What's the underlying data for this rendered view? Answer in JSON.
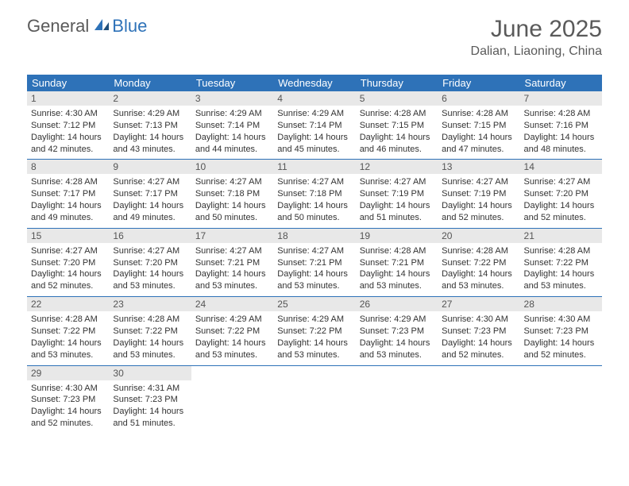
{
  "logo": {
    "part1": "General",
    "part2": "Blue"
  },
  "title": "June 2025",
  "location": "Dalian, Liaoning, China",
  "colors": {
    "header_bg": "#2e72b8",
    "header_text": "#ffffff",
    "daynum_bg": "#e8e8e8",
    "daynum_text": "#555555",
    "body_text": "#333333",
    "title_text": "#5a5a5a",
    "row_border": "#2e72b8"
  },
  "weekdays": [
    "Sunday",
    "Monday",
    "Tuesday",
    "Wednesday",
    "Thursday",
    "Friday",
    "Saturday"
  ],
  "days": [
    {
      "n": "1",
      "sr": "4:30 AM",
      "ss": "7:12 PM",
      "dl": "14 hours and 42 minutes."
    },
    {
      "n": "2",
      "sr": "4:29 AM",
      "ss": "7:13 PM",
      "dl": "14 hours and 43 minutes."
    },
    {
      "n": "3",
      "sr": "4:29 AM",
      "ss": "7:14 PM",
      "dl": "14 hours and 44 minutes."
    },
    {
      "n": "4",
      "sr": "4:29 AM",
      "ss": "7:14 PM",
      "dl": "14 hours and 45 minutes."
    },
    {
      "n": "5",
      "sr": "4:28 AM",
      "ss": "7:15 PM",
      "dl": "14 hours and 46 minutes."
    },
    {
      "n": "6",
      "sr": "4:28 AM",
      "ss": "7:15 PM",
      "dl": "14 hours and 47 minutes."
    },
    {
      "n": "7",
      "sr": "4:28 AM",
      "ss": "7:16 PM",
      "dl": "14 hours and 48 minutes."
    },
    {
      "n": "8",
      "sr": "4:28 AM",
      "ss": "7:17 PM",
      "dl": "14 hours and 49 minutes."
    },
    {
      "n": "9",
      "sr": "4:27 AM",
      "ss": "7:17 PM",
      "dl": "14 hours and 49 minutes."
    },
    {
      "n": "10",
      "sr": "4:27 AM",
      "ss": "7:18 PM",
      "dl": "14 hours and 50 minutes."
    },
    {
      "n": "11",
      "sr": "4:27 AM",
      "ss": "7:18 PM",
      "dl": "14 hours and 50 minutes."
    },
    {
      "n": "12",
      "sr": "4:27 AM",
      "ss": "7:19 PM",
      "dl": "14 hours and 51 minutes."
    },
    {
      "n": "13",
      "sr": "4:27 AM",
      "ss": "7:19 PM",
      "dl": "14 hours and 52 minutes."
    },
    {
      "n": "14",
      "sr": "4:27 AM",
      "ss": "7:20 PM",
      "dl": "14 hours and 52 minutes."
    },
    {
      "n": "15",
      "sr": "4:27 AM",
      "ss": "7:20 PM",
      "dl": "14 hours and 52 minutes."
    },
    {
      "n": "16",
      "sr": "4:27 AM",
      "ss": "7:20 PM",
      "dl": "14 hours and 53 minutes."
    },
    {
      "n": "17",
      "sr": "4:27 AM",
      "ss": "7:21 PM",
      "dl": "14 hours and 53 minutes."
    },
    {
      "n": "18",
      "sr": "4:27 AM",
      "ss": "7:21 PM",
      "dl": "14 hours and 53 minutes."
    },
    {
      "n": "19",
      "sr": "4:28 AM",
      "ss": "7:21 PM",
      "dl": "14 hours and 53 minutes."
    },
    {
      "n": "20",
      "sr": "4:28 AM",
      "ss": "7:22 PM",
      "dl": "14 hours and 53 minutes."
    },
    {
      "n": "21",
      "sr": "4:28 AM",
      "ss": "7:22 PM",
      "dl": "14 hours and 53 minutes."
    },
    {
      "n": "22",
      "sr": "4:28 AM",
      "ss": "7:22 PM",
      "dl": "14 hours and 53 minutes."
    },
    {
      "n": "23",
      "sr": "4:28 AM",
      "ss": "7:22 PM",
      "dl": "14 hours and 53 minutes."
    },
    {
      "n": "24",
      "sr": "4:29 AM",
      "ss": "7:22 PM",
      "dl": "14 hours and 53 minutes."
    },
    {
      "n": "25",
      "sr": "4:29 AM",
      "ss": "7:22 PM",
      "dl": "14 hours and 53 minutes."
    },
    {
      "n": "26",
      "sr": "4:29 AM",
      "ss": "7:23 PM",
      "dl": "14 hours and 53 minutes."
    },
    {
      "n": "27",
      "sr": "4:30 AM",
      "ss": "7:23 PM",
      "dl": "14 hours and 52 minutes."
    },
    {
      "n": "28",
      "sr": "4:30 AM",
      "ss": "7:23 PM",
      "dl": "14 hours and 52 minutes."
    },
    {
      "n": "29",
      "sr": "4:30 AM",
      "ss": "7:23 PM",
      "dl": "14 hours and 52 minutes."
    },
    {
      "n": "30",
      "sr": "4:31 AM",
      "ss": "7:23 PM",
      "dl": "14 hours and 51 minutes."
    }
  ],
  "labels": {
    "sunrise": "Sunrise:",
    "sunset": "Sunset:",
    "daylight": "Daylight:"
  }
}
